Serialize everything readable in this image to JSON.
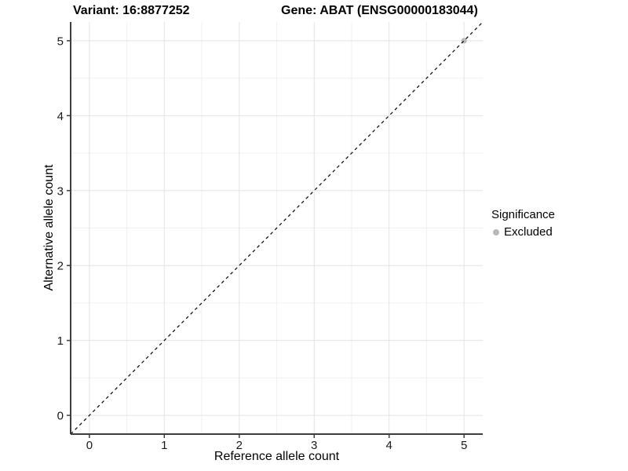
{
  "colors": {
    "background": "#ffffff",
    "grid_major": "#e3e3e3",
    "grid_minor": "#f0f0f0",
    "axis_line": "#3d3d3d",
    "tick_text": "#1a1a1a",
    "title_text": "#000000",
    "point_excluded": "#b9b9b9",
    "reference_line": "#000000"
  },
  "chart_data": {
    "type": "scatter",
    "title_left": "Variant: 16:8877252",
    "title_right": "Gene: ABAT (ENSG00000183044)",
    "xlabel": "Reference allele count",
    "ylabel": "Alternative allele count",
    "xlim": [
      -0.25,
      5.25
    ],
    "ylim": [
      -0.25,
      5.25
    ],
    "xticks": [
      0,
      1,
      2,
      3,
      4,
      5
    ],
    "yticks": [
      0,
      1,
      2,
      3,
      4,
      5
    ],
    "x_minor_ticks": [
      0.5,
      1.5,
      2.5,
      3.5,
      4.5
    ],
    "y_minor_ticks": [
      0.5,
      1.5,
      2.5,
      3.5,
      4.5
    ],
    "grid": "major+minor",
    "reference_line": {
      "kind": "identity",
      "slope": 1,
      "intercept": 0,
      "style": "dashed",
      "color": "#000000"
    },
    "series": [
      {
        "name": "Excluded",
        "color": "#b9b9b9",
        "marker": "circle",
        "points": [
          {
            "x": 5,
            "y": 5
          }
        ]
      }
    ],
    "legend": {
      "title": "Significance",
      "position": "right",
      "entries": [
        {
          "label": "Excluded",
          "color": "#b9b9b9",
          "marker": "circle"
        }
      ]
    }
  }
}
